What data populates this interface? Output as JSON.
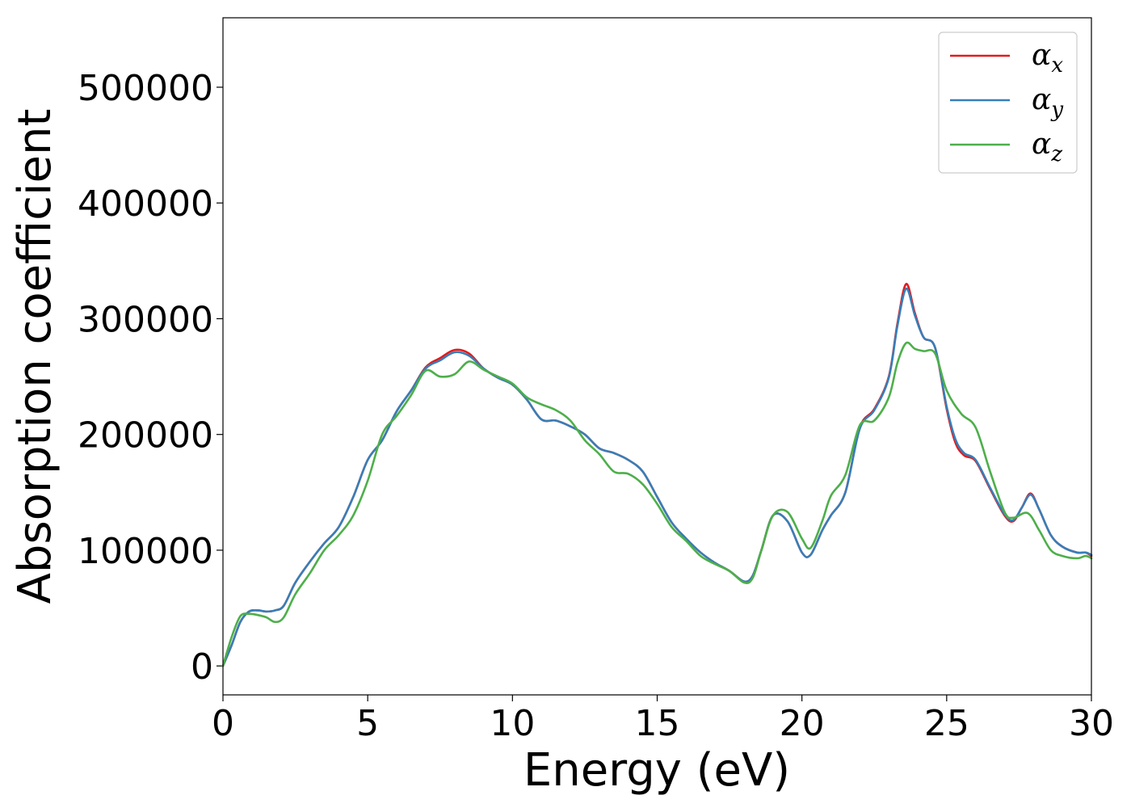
{
  "chart_data": {
    "type": "line",
    "title": "",
    "xlabel": "Energy (eV)",
    "ylabel": "Absorption coefficient",
    "xlim": [
      0,
      30
    ],
    "ylim": [
      -25000,
      560000
    ],
    "xticks": [
      0,
      5,
      10,
      15,
      20,
      25,
      30
    ],
    "xtick_labels": [
      "0",
      "5",
      "10",
      "15",
      "20",
      "25",
      "30"
    ],
    "yticks": [
      0,
      100000,
      200000,
      300000,
      400000,
      500000
    ],
    "ytick_labels": [
      "0",
      "100000",
      "200000",
      "300000",
      "400000",
      "500000"
    ],
    "grid": false,
    "legend": {
      "position": "top-right"
    },
    "series": [
      {
        "name": "α_x",
        "label_base": "α",
        "label_sub": "x",
        "color": "#e41a1c",
        "x": [
          0,
          0.3,
          0.6,
          0.9,
          1.2,
          1.5,
          1.8,
          2.1,
          2.5,
          3.0,
          3.5,
          4.0,
          4.5,
          5.0,
          5.5,
          6.0,
          6.5,
          7.0,
          7.5,
          8.0,
          8.5,
          9.0,
          9.5,
          10.0,
          10.5,
          11.0,
          11.5,
          12.0,
          12.5,
          13.0,
          13.5,
          14.0,
          14.5,
          15.0,
          15.5,
          16.0,
          16.5,
          17.0,
          17.5,
          18.0,
          18.3,
          18.6,
          19.0,
          19.5,
          20.0,
          20.3,
          20.7,
          21.0,
          21.5,
          22.0,
          22.5,
          23.0,
          23.3,
          23.6,
          23.9,
          24.2,
          24.6,
          25.0,
          25.3,
          25.6,
          26.0,
          26.5,
          27.0,
          27.3,
          27.6,
          27.9,
          28.2,
          28.6,
          29.0,
          29.5,
          29.8,
          30.0
        ],
        "y": [
          0,
          18000,
          38000,
          47000,
          48000,
          47000,
          48000,
          52000,
          72000,
          90000,
          106000,
          120000,
          146000,
          178000,
          195000,
          220000,
          238000,
          258000,
          266000,
          273000,
          270000,
          257000,
          249000,
          243000,
          230000,
          213000,
          212000,
          207000,
          200000,
          188000,
          184000,
          178000,
          168000,
          146000,
          124000,
          110000,
          98000,
          89000,
          82000,
          73000,
          78000,
          100000,
          130000,
          125000,
          98000,
          96000,
          117000,
          130000,
          150000,
          206000,
          222000,
          250000,
          296000,
          330000,
          305000,
          284000,
          275000,
          222000,
          193000,
          182000,
          177000,
          153000,
          130000,
          125000,
          137000,
          149000,
          135000,
          113000,
          103000,
          98000,
          98000,
          95000
        ]
      },
      {
        "name": "α_y",
        "label_base": "α",
        "label_sub": "y",
        "color": "#377eb8",
        "x": [
          0,
          0.3,
          0.6,
          0.9,
          1.2,
          1.5,
          1.8,
          2.1,
          2.5,
          3.0,
          3.5,
          4.0,
          4.5,
          5.0,
          5.5,
          6.0,
          6.5,
          7.0,
          7.5,
          8.0,
          8.5,
          9.0,
          9.5,
          10.0,
          10.5,
          11.0,
          11.5,
          12.0,
          12.5,
          13.0,
          13.5,
          14.0,
          14.5,
          15.0,
          15.5,
          16.0,
          16.5,
          17.0,
          17.5,
          18.0,
          18.3,
          18.6,
          19.0,
          19.5,
          20.0,
          20.3,
          20.7,
          21.0,
          21.5,
          22.0,
          22.5,
          23.0,
          23.3,
          23.6,
          23.9,
          24.2,
          24.6,
          25.0,
          25.3,
          25.6,
          26.0,
          26.5,
          27.0,
          27.3,
          27.6,
          27.9,
          28.2,
          28.6,
          29.0,
          29.5,
          29.8,
          30.0
        ],
        "y": [
          0,
          18000,
          38000,
          47000,
          48000,
          47000,
          48000,
          52000,
          72000,
          90000,
          106000,
          120000,
          146000,
          178000,
          195000,
          220000,
          238000,
          257000,
          264000,
          271000,
          268000,
          257000,
          249000,
          243000,
          230000,
          213000,
          212000,
          207000,
          200000,
          188000,
          184000,
          178000,
          168000,
          146000,
          124000,
          110000,
          98000,
          89000,
          82000,
          73000,
          78000,
          100000,
          130000,
          125000,
          98000,
          96000,
          117000,
          130000,
          150000,
          205000,
          221000,
          249000,
          294000,
          326000,
          303000,
          284000,
          275000,
          224000,
          196000,
          184000,
          178000,
          154000,
          131000,
          126000,
          137000,
          148000,
          135000,
          113000,
          103000,
          98000,
          98000,
          96000
        ]
      },
      {
        "name": "α_z",
        "label_base": "α",
        "label_sub": "z",
        "color": "#4daf4a",
        "x": [
          0,
          0.3,
          0.6,
          0.9,
          1.2,
          1.5,
          1.8,
          2.1,
          2.5,
          3.0,
          3.5,
          4.0,
          4.5,
          5.0,
          5.5,
          6.0,
          6.5,
          7.0,
          7.5,
          8.0,
          8.5,
          9.0,
          9.5,
          10.0,
          10.5,
          11.0,
          11.5,
          12.0,
          12.5,
          13.0,
          13.5,
          14.0,
          14.5,
          15.0,
          15.5,
          16.0,
          16.5,
          17.0,
          17.5,
          18.0,
          18.3,
          18.6,
          19.0,
          19.5,
          20.0,
          20.3,
          20.7,
          21.0,
          21.5,
          22.0,
          22.5,
          23.0,
          23.3,
          23.6,
          23.9,
          24.2,
          24.6,
          25.0,
          25.5,
          26.0,
          26.5,
          27.0,
          27.3,
          27.8,
          28.2,
          28.6,
          29.0,
          29.5,
          29.8,
          30.0
        ],
        "y": [
          0,
          25000,
          43000,
          45000,
          44000,
          42000,
          38000,
          42000,
          62000,
          80000,
          100000,
          113000,
          130000,
          160000,
          200000,
          216000,
          234000,
          255000,
          250000,
          252000,
          263000,
          256000,
          250000,
          244000,
          232000,
          226000,
          221000,
          212000,
          195000,
          183000,
          168000,
          166000,
          157000,
          140000,
          120000,
          108000,
          95000,
          88000,
          82000,
          72000,
          76000,
          100000,
          130000,
          133000,
          110000,
          102000,
          125000,
          147000,
          165000,
          208000,
          212000,
          232000,
          262000,
          279000,
          274000,
          272000,
          270000,
          238000,
          218000,
          206000,
          168000,
          133000,
          128000,
          132000,
          117000,
          100000,
          95000,
          93000,
          95000,
          93000
        ]
      }
    ]
  }
}
